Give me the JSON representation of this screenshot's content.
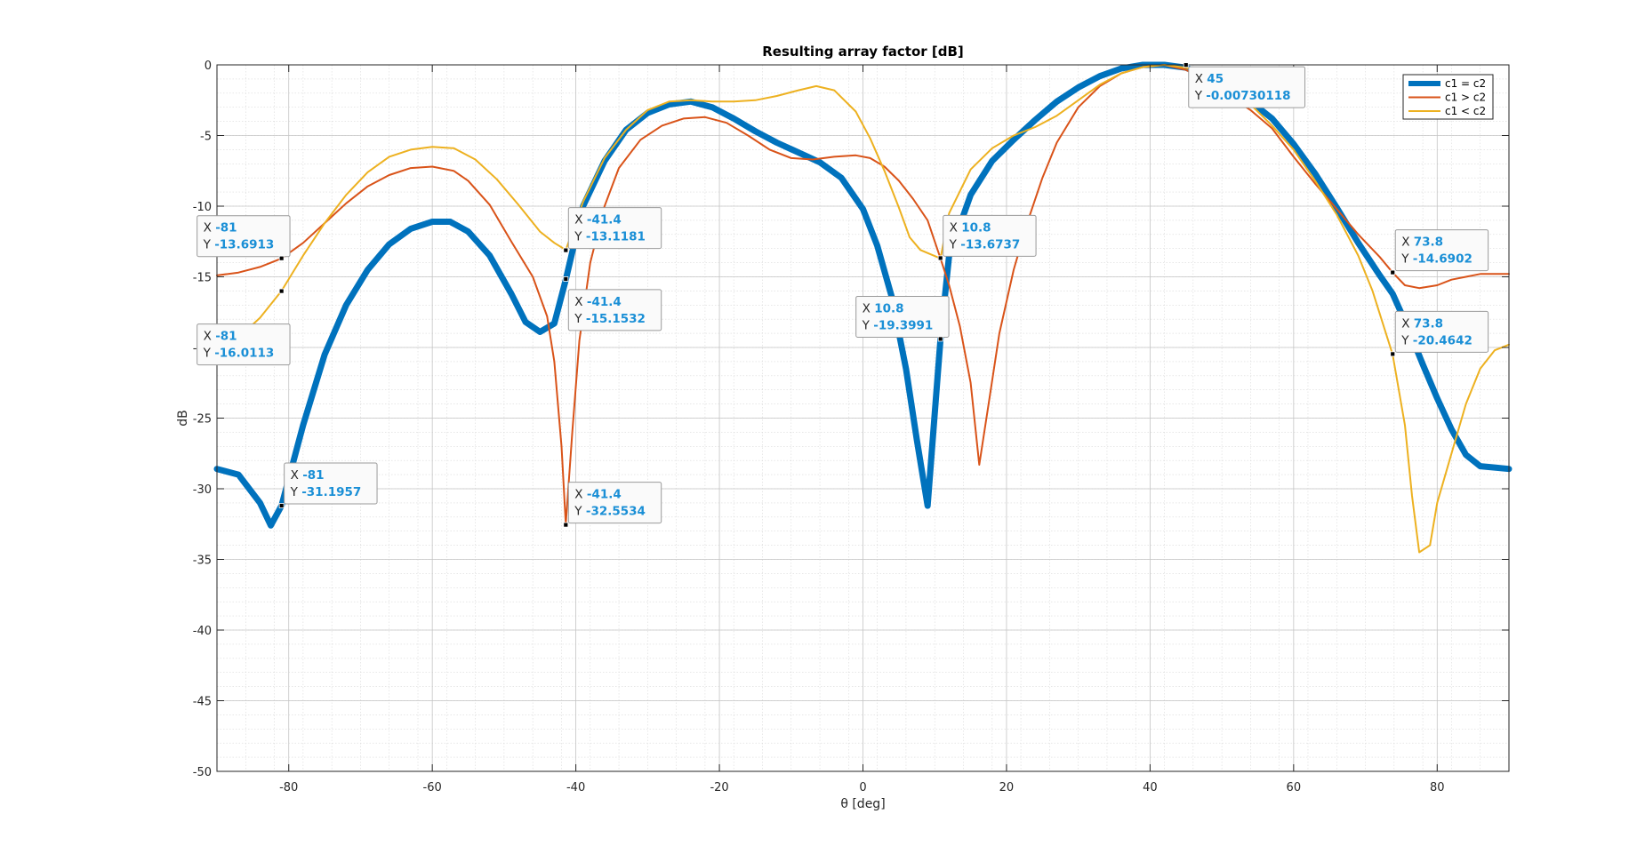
{
  "chart_data": {
    "type": "line",
    "title": "Resulting array factor [dB]",
    "xlabel": "θ [deg]",
    "ylabel": "dB",
    "xlim": [
      -90,
      90
    ],
    "ylim": [
      -50,
      0
    ],
    "xticks": [
      -80,
      -60,
      -40,
      -20,
      0,
      20,
      40,
      60,
      80
    ],
    "yticks": [
      0,
      -5,
      -10,
      -15,
      -20,
      -25,
      -30,
      -35,
      -40,
      -45,
      -50
    ],
    "grid": true,
    "minor_grid": true,
    "legend_position": "top-right",
    "series": [
      {
        "name": "c1 = c2",
        "color": "#0072BD",
        "line_width": 7,
        "x": [
          -90,
          -87,
          -84,
          -82.5,
          -81,
          -78,
          -75,
          -72,
          -69,
          -66,
          -63,
          -60,
          -57.5,
          -55,
          -52,
          -49,
          -47,
          -45,
          -43,
          -41.4,
          -39,
          -36,
          -33,
          -30,
          -27,
          -24,
          -21,
          -18,
          -15,
          -12,
          -9,
          -6,
          -3,
          0,
          2,
          4,
          6,
          7.5,
          9,
          10.8,
          12,
          15,
          18,
          21,
          24,
          27,
          30,
          33,
          36,
          39,
          42,
          45,
          48,
          51,
          54,
          57,
          60,
          63,
          66,
          69,
          72,
          73.8,
          76,
          78,
          80,
          82,
          84,
          86,
          88,
          90
        ],
        "y": [
          -28.6,
          -29.0,
          -31.0,
          -32.6,
          -31.2,
          -25.5,
          -20.5,
          -17.0,
          -14.5,
          -12.7,
          -11.6,
          -11.1,
          -11.1,
          -11.8,
          -13.5,
          -16.2,
          -18.2,
          -18.9,
          -18.3,
          -15.2,
          -10.0,
          -6.8,
          -4.6,
          -3.4,
          -2.8,
          -2.6,
          -3.0,
          -3.8,
          -4.7,
          -5.5,
          -6.2,
          -6.9,
          -8.0,
          -10.2,
          -12.8,
          -16.4,
          -21.5,
          -26.5,
          -31.2,
          -19.4,
          -13.5,
          -9.2,
          -6.8,
          -5.3,
          -3.9,
          -2.6,
          -1.6,
          -0.8,
          -0.25,
          0.0,
          0.0,
          -0.2,
          -0.8,
          -1.7,
          -2.6,
          -3.8,
          -5.6,
          -7.7,
          -10.1,
          -12.6,
          -14.9,
          -16.2,
          -18.7,
          -21.2,
          -23.6,
          -25.8,
          -27.6,
          -28.4,
          -28.5,
          -28.6
        ]
      },
      {
        "name": "c1 > c2",
        "color": "#D95319",
        "line_width": 2,
        "x": [
          -90,
          -87,
          -84,
          -81,
          -78,
          -75,
          -72,
          -69,
          -66,
          -63,
          -60,
          -57,
          -55,
          -52,
          -49,
          -46,
          -44,
          -43,
          -42,
          -41.4,
          -40.5,
          -39.5,
          -38,
          -36,
          -34,
          -31,
          -28,
          -25,
          -22,
          -19,
          -16,
          -13,
          -10,
          -7,
          -4,
          -1,
          1,
          3,
          5,
          7,
          9,
          10.8,
          12,
          13.5,
          15,
          16.2,
          17.5,
          19,
          21,
          23,
          25,
          27,
          30,
          33,
          36,
          39,
          42,
          45,
          48,
          51,
          54,
          57,
          60,
          63,
          66,
          69,
          72,
          73.8,
          75.5,
          77.5,
          80,
          82,
          84,
          86,
          88,
          90
        ],
        "y": [
          -14.9,
          -14.7,
          -14.3,
          -13.7,
          -12.6,
          -11.2,
          -9.8,
          -8.6,
          -7.8,
          -7.3,
          -7.2,
          -7.5,
          -8.2,
          -9.9,
          -12.5,
          -15.0,
          -17.8,
          -21.0,
          -27.0,
          -32.5,
          -26.0,
          -19.5,
          -14.0,
          -10.0,
          -7.3,
          -5.3,
          -4.3,
          -3.8,
          -3.7,
          -4.1,
          -5.0,
          -6.0,
          -6.6,
          -6.7,
          -6.5,
          -6.4,
          -6.6,
          -7.2,
          -8.2,
          -9.5,
          -11.0,
          -13.7,
          -15.6,
          -18.5,
          -22.5,
          -28.3,
          -24.0,
          -19.0,
          -14.5,
          -11.0,
          -8.0,
          -5.5,
          -3.0,
          -1.5,
          -0.6,
          -0.15,
          0.0,
          -0.35,
          -1.2,
          -2.2,
          -3.2,
          -4.5,
          -6.5,
          -8.4,
          -10.2,
          -12.0,
          -13.6,
          -14.7,
          -15.6,
          -15.8,
          -15.6,
          -15.2,
          -15.0,
          -14.8,
          -14.8,
          -14.8
        ]
      },
      {
        "name": "c1 < c2",
        "color": "#EDB120",
        "line_width": 2,
        "x": [
          -90,
          -87,
          -84,
          -81,
          -78,
          -75,
          -72,
          -69,
          -66,
          -63,
          -60,
          -57,
          -54,
          -51,
          -48,
          -45,
          -43,
          -41.4,
          -39,
          -36,
          -33,
          -30,
          -27,
          -24,
          -21,
          -18,
          -15,
          -12,
          -9,
          -6.5,
          -4,
          -1,
          1,
          3,
          5,
          6.5,
          8,
          10.8,
          12,
          15,
          18,
          21,
          24,
          27,
          30,
          33,
          36,
          39,
          42,
          45,
          48,
          51,
          54,
          57,
          60,
          63,
          66,
          69,
          71,
          73.8,
          75.5,
          76.5,
          77.5,
          79,
          80,
          82,
          84,
          86,
          88,
          90
        ],
        "y": [
          -19.9,
          -19.3,
          -17.9,
          -16.0,
          -13.5,
          -11.2,
          -9.2,
          -7.6,
          -6.5,
          -6.0,
          -5.8,
          -5.9,
          -6.7,
          -8.1,
          -9.9,
          -11.8,
          -12.6,
          -13.1,
          -9.7,
          -6.6,
          -4.6,
          -3.2,
          -2.6,
          -2.5,
          -2.6,
          -2.6,
          -2.5,
          -2.2,
          -1.8,
          -1.5,
          -1.8,
          -3.3,
          -5.2,
          -7.5,
          -10.1,
          -12.2,
          -13.1,
          -13.7,
          -10.5,
          -7.4,
          -5.9,
          -5.0,
          -4.4,
          -3.6,
          -2.5,
          -1.4,
          -0.6,
          -0.15,
          0.0,
          -0.2,
          -0.8,
          -1.7,
          -2.8,
          -4.3,
          -6.0,
          -8.2,
          -10.6,
          -13.5,
          -16.0,
          -20.5,
          -25.5,
          -30.5,
          -34.5,
          -34.0,
          -31.0,
          -27.5,
          -24.0,
          -21.5,
          -20.2,
          -19.8
        ]
      }
    ],
    "datatips": [
      {
        "x_label": "X",
        "y_label": "Y",
        "x_value": "-81",
        "y_value": "-13.6913",
        "x": -81,
        "y": -13.6913
      },
      {
        "x_label": "X",
        "y_label": "Y",
        "x_value": "-81",
        "y_value": "-16.0113",
        "x": -81,
        "y": -16.0113
      },
      {
        "x_label": "X",
        "y_label": "Y",
        "x_value": "-81",
        "y_value": "-31.1957",
        "x": -81,
        "y": -31.1957
      },
      {
        "x_label": "X",
        "y_label": "Y",
        "x_value": "-41.4",
        "y_value": "-13.1181",
        "x": -41.4,
        "y": -13.1181
      },
      {
        "x_label": "X",
        "y_label": "Y",
        "x_value": "-41.4",
        "y_value": "-15.1532",
        "x": -41.4,
        "y": -15.1532
      },
      {
        "x_label": "X",
        "y_label": "Y",
        "x_value": "-41.4",
        "y_value": "-32.5534",
        "x": -41.4,
        "y": -32.5534
      },
      {
        "x_label": "X",
        "y_label": "Y",
        "x_value": "10.8",
        "y_value": "-13.6737",
        "x": 10.8,
        "y": -13.6737
      },
      {
        "x_label": "X",
        "y_label": "Y",
        "x_value": "10.8",
        "y_value": "-19.3991",
        "x": 10.8,
        "y": -19.3991
      },
      {
        "x_label": "X",
        "y_label": "Y",
        "x_value": "45",
        "y_value": "-0.00730118",
        "x": 45,
        "y": -0.00730118
      },
      {
        "x_label": "X",
        "y_label": "Y",
        "x_value": "73.8",
        "y_value": "-14.6902",
        "x": 73.8,
        "y": -14.6902
      },
      {
        "x_label": "X",
        "y_label": "Y",
        "x_value": "73.8",
        "y_value": "-20.4642",
        "x": 73.8,
        "y": -20.4642
      }
    ]
  }
}
